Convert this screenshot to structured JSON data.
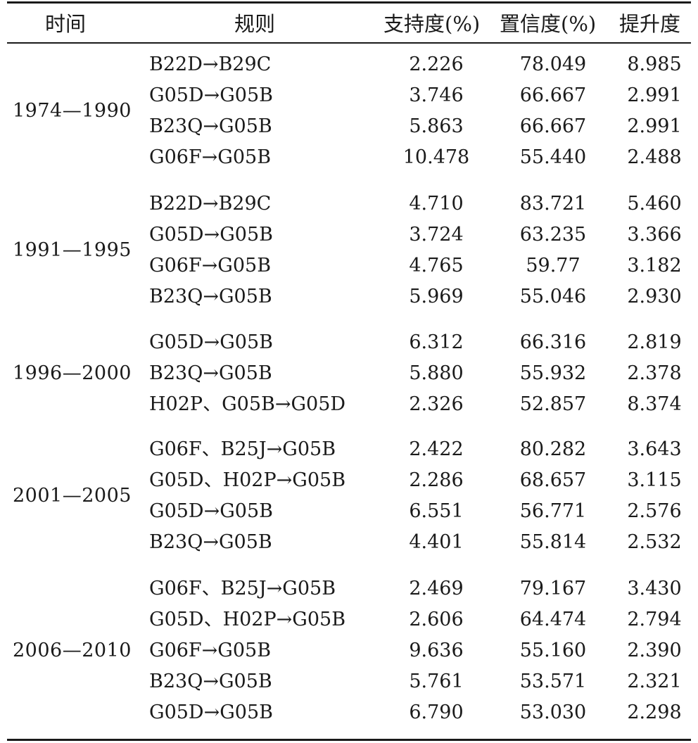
{
  "headers": {
    "time": "时间",
    "rule": "规则",
    "support": "支持度(%)",
    "confidence": "置信度(%)",
    "lift": "提升度"
  },
  "groups": [
    {
      "period": "1974—1990",
      "rows": [
        {
          "rule": "B22D→B29C",
          "support": "2.226",
          "confidence": "78.049",
          "lift": "8.985"
        },
        {
          "rule": "G05D→G05B",
          "support": "3.746",
          "confidence": "66.667",
          "lift": "2.991"
        },
        {
          "rule": "B23Q→G05B",
          "support": "5.863",
          "confidence": "66.667",
          "lift": "2.991"
        },
        {
          "rule": "G06F→G05B",
          "support": "10.478",
          "confidence": "55.440",
          "lift": "2.488"
        }
      ]
    },
    {
      "period": "1991—1995",
      "rows": [
        {
          "rule": "B22D→B29C",
          "support": "4.710",
          "confidence": "83.721",
          "lift": "5.460"
        },
        {
          "rule": "G05D→G05B",
          "support": "3.724",
          "confidence": "63.235",
          "lift": "3.366"
        },
        {
          "rule": "G06F→G05B",
          "support": "4.765",
          "confidence": "59.77",
          "lift": "3.182"
        },
        {
          "rule": "B23Q→G05B",
          "support": "5.969",
          "confidence": "55.046",
          "lift": "2.930"
        }
      ]
    },
    {
      "period": "1996—2000",
      "rows": [
        {
          "rule": "G05D→G05B",
          "support": "6.312",
          "confidence": "66.316",
          "lift": "2.819"
        },
        {
          "rule": "B23Q→G05B",
          "support": "5.880",
          "confidence": "55.932",
          "lift": "2.378"
        },
        {
          "rule": "H02P、G05B→G05D",
          "support": "2.326",
          "confidence": "52.857",
          "lift": "8.374"
        }
      ]
    },
    {
      "period": "2001—2005",
      "rows": [
        {
          "rule": "G06F、B25J→G05B",
          "support": "2.422",
          "confidence": "80.282",
          "lift": "3.643"
        },
        {
          "rule": "G05D、H02P→G05B",
          "support": "2.286",
          "confidence": "68.657",
          "lift": "3.115"
        },
        {
          "rule": "G05D→G05B",
          "support": "6.551",
          "confidence": "56.771",
          "lift": "2.576"
        },
        {
          "rule": "B23Q→G05B",
          "support": "4.401",
          "confidence": "55.814",
          "lift": "2.532"
        }
      ]
    },
    {
      "period": "2006—2010",
      "rows": [
        {
          "rule": "G06F、B25J→G05B",
          "support": "2.469",
          "confidence": "79.167",
          "lift": "3.430"
        },
        {
          "rule": "G05D、H02P→G05B",
          "support": "2.606",
          "confidence": "64.474",
          "lift": "2.794"
        },
        {
          "rule": "G06F→G05B",
          "support": "9.636",
          "confidence": "55.160",
          "lift": "2.390"
        },
        {
          "rule": "B23Q→G05B",
          "support": "5.761",
          "confidence": "53.571",
          "lift": "2.321"
        },
        {
          "rule": "G05D→G05B",
          "support": "6.790",
          "confidence": "53.030",
          "lift": "2.298"
        }
      ]
    }
  ]
}
